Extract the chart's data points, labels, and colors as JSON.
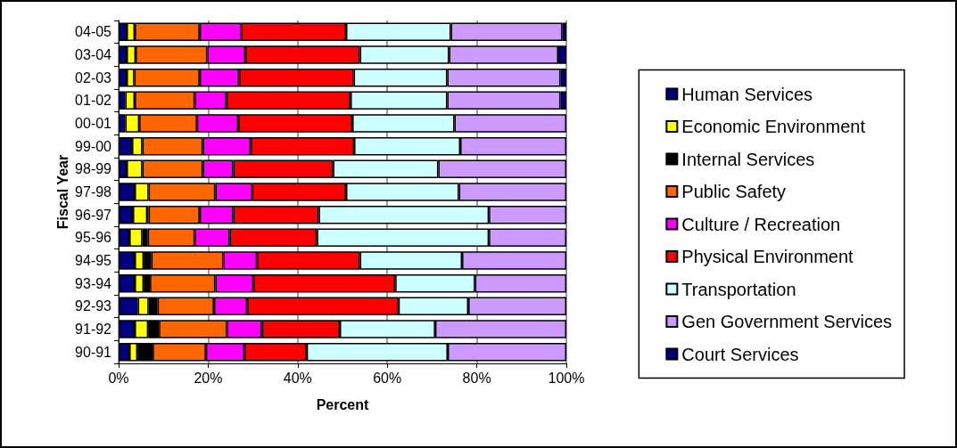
{
  "chart_data": {
    "type": "bar",
    "orientation": "horizontal",
    "stacked": true,
    "xlabel": "Percent",
    "ylabel": "Fiscal Year",
    "categories": [
      "04-05",
      "03-04",
      "02-03",
      "01-02",
      "00-01",
      "99-00",
      "98-99",
      "97-98",
      "96-97",
      "95-96",
      "94-95",
      "93-94",
      "92-93",
      "91-92",
      "90-91"
    ],
    "series": [
      {
        "name": "Human Services",
        "color": "#000080",
        "values": [
          1.8,
          1.8,
          1.8,
          1.5,
          1.5,
          3.0,
          1.8,
          3.6,
          3.2,
          2.4,
          3.6,
          3.6,
          4.3,
          3.6,
          2.4
        ]
      },
      {
        "name": "Economic Environment",
        "color": "#ffff00",
        "values": [
          1.8,
          2.0,
          1.7,
          2.1,
          3.1,
          2.3,
          3.5,
          3.1,
          3.2,
          2.9,
          2.0,
          2.0,
          2.4,
          3.0,
          1.8
        ]
      },
      {
        "name": "Internal Services",
        "color": "#000000",
        "values": [
          0,
          0,
          0,
          0,
          0,
          0,
          0,
          0,
          0.3,
          1.2,
          1.7,
          1.4,
          2.0,
          2.4,
          3.4
        ]
      },
      {
        "name": "Public Safety",
        "color": "#ff6600",
        "values": [
          14.5,
          16.0,
          14.6,
          13.4,
          12.9,
          13.5,
          13.5,
          14.9,
          11.4,
          10.5,
          16.1,
          14.6,
          12.6,
          15.2,
          11.9
        ]
      },
      {
        "name": "Culture / Recreation",
        "color": "#ff00ff",
        "values": [
          9.3,
          8.5,
          8.8,
          7.1,
          9.2,
          10.7,
          6.8,
          8.2,
          7.5,
          7.8,
          7.5,
          8.5,
          7.4,
          7.8,
          8.6
        ]
      },
      {
        "name": "Physical Environment",
        "color": "#ff0000",
        "values": [
          23.4,
          25.6,
          25.6,
          27.7,
          25.5,
          23.1,
          22.3,
          21.0,
          19.1,
          19.5,
          23.0,
          31.7,
          33.8,
          17.4,
          13.9
        ]
      },
      {
        "name": "Transportation",
        "color": "#ccffff",
        "values": [
          23.4,
          19.9,
          20.9,
          21.6,
          22.8,
          23.7,
          23.5,
          25.2,
          38.0,
          38.4,
          22.8,
          17.8,
          15.6,
          21.3,
          31.5
        ]
      },
      {
        "name": "Gen Government Services",
        "color": "#cc99ff",
        "values": [
          24.9,
          24.4,
          25.3,
          25.3,
          25.0,
          23.7,
          28.6,
          24.0,
          17.3,
          17.3,
          23.3,
          20.4,
          21.9,
          29.3,
          26.5
        ]
      },
      {
        "name": "Court Services",
        "color": "#000080",
        "values": [
          0.9,
          1.8,
          1.3,
          1.3,
          0,
          0,
          0,
          0,
          0,
          0,
          0,
          0,
          0,
          0,
          0
        ]
      }
    ],
    "xlim": [
      0,
      100
    ],
    "xticks": [
      {
        "value": 0,
        "label": "0%"
      },
      {
        "value": 20,
        "label": "20%"
      },
      {
        "value": 40,
        "label": "40%"
      },
      {
        "value": 60,
        "label": "60%"
      },
      {
        "value": 80,
        "label": "80%"
      },
      {
        "value": 100,
        "label": "100%"
      }
    ],
    "grid": "x",
    "legend": "right"
  }
}
